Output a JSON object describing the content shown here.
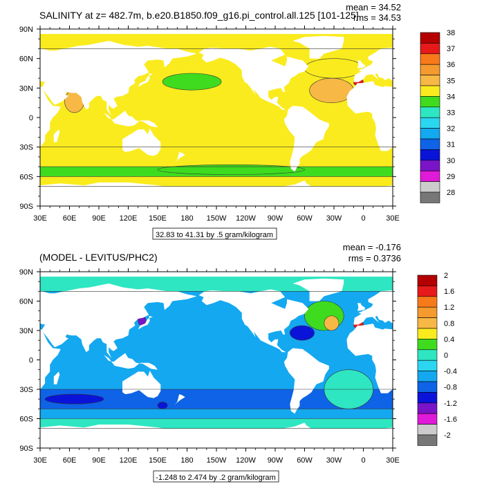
{
  "chart_data": [
    {
      "type": "heatmap",
      "title": "SALINITY at z= 482.7m, b.e20.B1850.f09_g16.pi_control.all.125 [101-125]",
      "stats": [
        "mean = 34.52",
        "rms = 34.53"
      ],
      "x_ticks": [
        "30E",
        "60E",
        "90E",
        "120E",
        "150E",
        "180",
        "150W",
        "120W",
        "90W",
        "60W",
        "30W",
        "0",
        "30E"
      ],
      "y_ticks": [
        "90N",
        "60N",
        "30N",
        "0",
        "30S",
        "60S",
        "90S"
      ],
      "contour_note": "32.83 to 41.31 by .5 gram/kilogram",
      "colorbar": {
        "labels": [
          "38",
          "37",
          "36",
          "35",
          "34",
          "33",
          "32",
          "31",
          "30",
          "29",
          "28"
        ],
        "colors": [
          "#b40000",
          "#e61a1a",
          "#f77a1a",
          "#f59a2e",
          "#f7b845",
          "#faeb1e",
          "#3fdb1e",
          "#2ee6c2",
          "#2bd6f0",
          "#14a8f0",
          "#0e63e6",
          "#0a14d9",
          "#7a14c8",
          "#e01ad9",
          "#cccccc",
          "#777777"
        ]
      },
      "zones": [
        {
          "lat": [
            70,
            85
          ],
          "value": 34.9
        },
        {
          "lat": [
            -30,
            70
          ],
          "value": 34.6
        },
        {
          "lat": [
            -50,
            -30
          ],
          "value": 34.5
        },
        {
          "lat": [
            -60,
            -50
          ],
          "value": 34.3
        },
        {
          "lat": [
            -70,
            -60
          ],
          "value": 34.7
        }
      ],
      "features": [
        {
          "label": "north-atlantic-high",
          "lon": [
            -55,
            -10
          ],
          "lat": [
            15,
            40
          ],
          "value": 35.6
        },
        {
          "label": "north-atlantic-mid",
          "lon": [
            -60,
            0
          ],
          "lat": [
            40,
            60
          ],
          "value": 35.1
        },
        {
          "label": "arabian-sea",
          "lon": [
            55,
            75
          ],
          "lat": [
            5,
            28
          ],
          "value": 35.2
        },
        {
          "label": "north-pacific-tongue",
          "lon": [
            155,
            215
          ],
          "lat": [
            28,
            45
          ],
          "value": 33.9
        },
        {
          "label": "southern-ocean-band",
          "lon": [
            150,
            300
          ],
          "lat": [
            -58,
            -48
          ],
          "value": 34.2
        },
        {
          "label": "mediterranean-outflow",
          "lon": [
            -10,
            0
          ],
          "lat": [
            32,
            40
          ],
          "value": 37.6
        }
      ]
    },
    {
      "type": "heatmap",
      "title": "(MODEL - LEVITUS/PHC2)",
      "stats": [
        "mean = -0.176",
        "rms = 0.3736"
      ],
      "x_ticks": [
        "30E",
        "60E",
        "90E",
        "120E",
        "150E",
        "180",
        "150W",
        "120W",
        "90W",
        "60W",
        "30W",
        "0",
        "30E"
      ],
      "y_ticks": [
        "90N",
        "60N",
        "30N",
        "0",
        "30S",
        "60S",
        "90S"
      ],
      "contour_note": "-1.248 to 2.474 by .2 gram/kilogram",
      "colorbar": {
        "labels": [
          "2",
          "1.6",
          "1.2",
          "0.8",
          "0.4",
          "0",
          "-0.4",
          "-0.8",
          "-1.2",
          "-1.6",
          "-2"
        ],
        "colors": [
          "#b40000",
          "#e61a1a",
          "#f77a1a",
          "#f59a2e",
          "#f7b845",
          "#faeb1e",
          "#3fdb1e",
          "#2ee6c2",
          "#2bd6f0",
          "#14a8f0",
          "#0e63e6",
          "#0a14d9",
          "#7a14c8",
          "#e01ad9",
          "#cccccc",
          "#777777"
        ]
      },
      "zones": [
        {
          "lat": [
            70,
            85
          ],
          "value": 0.1
        },
        {
          "lat": [
            -30,
            70
          ],
          "value": -0.3
        },
        {
          "lat": [
            -50,
            -30
          ],
          "value": -0.6
        },
        {
          "lat": [
            -60,
            -50
          ],
          "value": -0.3
        },
        {
          "lat": [
            -70,
            -60
          ],
          "value": 0.1
        }
      ],
      "features": [
        {
          "label": "north-atlantic-warm",
          "lon": [
            -60,
            -20
          ],
          "lat": [
            30,
            60
          ],
          "value": 0.5
        },
        {
          "label": "gulf-stream-orange",
          "lon": [
            -40,
            -25
          ],
          "lat": [
            30,
            45
          ],
          "value": 1.0
        },
        {
          "label": "north-atlantic-low",
          "lon": [
            -75,
            -50
          ],
          "lat": [
            20,
            35
          ],
          "value": -0.9
        },
        {
          "label": "south-atlantic",
          "lon": [
            -40,
            10
          ],
          "lat": [
            -50,
            -10
          ],
          "value": 0.2
        },
        {
          "label": "south-indian-low",
          "lon": [
            35,
            95
          ],
          "lat": [
            -45,
            -35
          ],
          "value": -1.0
        },
        {
          "label": "tasman-patch",
          "lon": [
            150,
            160
          ],
          "lat": [
            -50,
            -43
          ],
          "value": -1.0
        },
        {
          "label": "japan-sea",
          "lon": [
            130,
            138
          ],
          "lat": [
            35,
            45
          ],
          "value": -1.2
        },
        {
          "label": "mediterranean-outflow",
          "lon": [
            -10,
            0
          ],
          "lat": [
            32,
            40
          ],
          "value": 1.9
        }
      ]
    }
  ]
}
